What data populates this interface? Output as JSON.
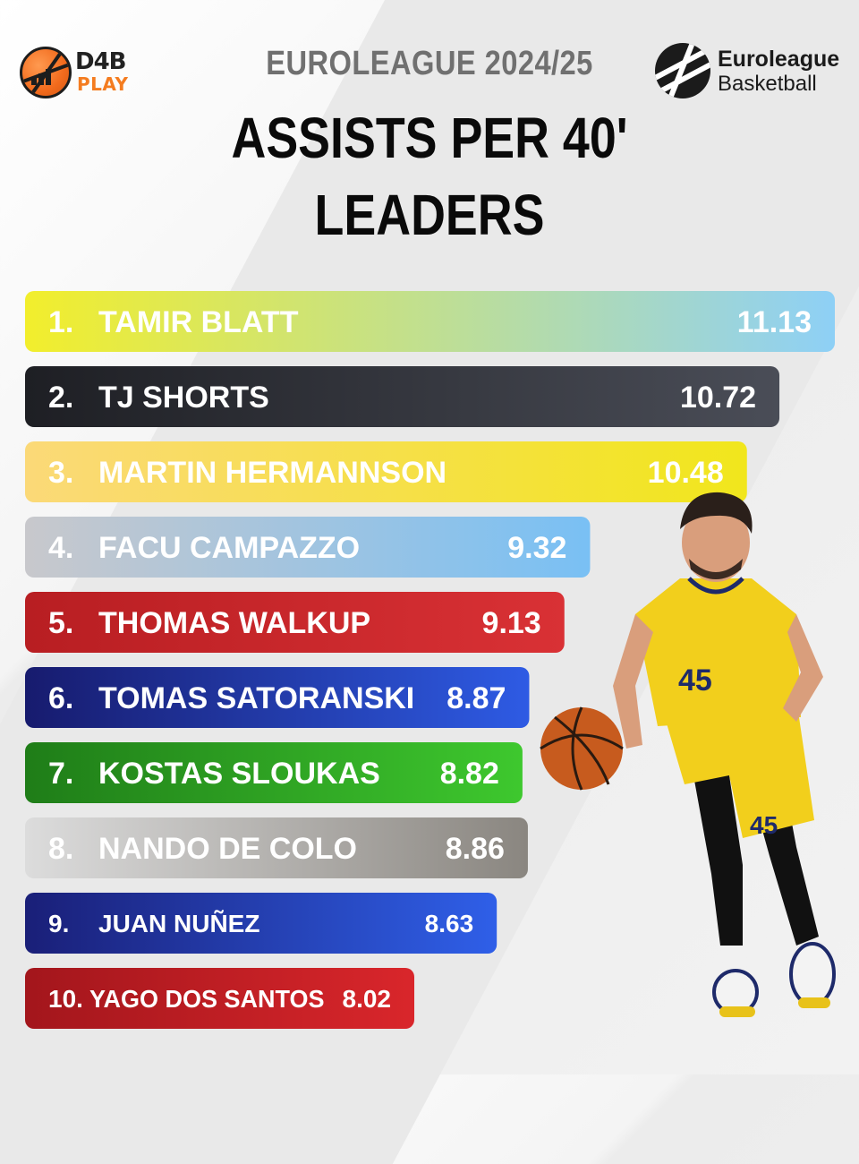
{
  "header": {
    "season": "EUROLEAGUE 2024/25",
    "title_line1": "ASSISTS PER 40'",
    "title_line2": "LEADERS"
  },
  "logos": {
    "left_top": "D4B",
    "left_bottom": "PLAY",
    "right_top": "Euroleague",
    "right_bottom": "Basketball"
  },
  "chart_data": {
    "type": "bar",
    "orientation": "horizontal",
    "title": "ASSISTS PER 40' LEADERS",
    "categories": [
      "TAMIR BLATT",
      "TJ SHORTS",
      "MARTIN HERMANNSON",
      "FACU CAMPAZZO",
      "THOMAS WALKUP",
      "TOMAS SATORANSKI",
      "KOSTAS SLOUKAS",
      "NANDO DE COLO",
      "JUAN NUÑEZ",
      "YAGO DOS SANTOS"
    ],
    "ranks": [
      "1.",
      "2.",
      "3.",
      "4.",
      "5.",
      "6.",
      "7.",
      "8.",
      "9.",
      "10."
    ],
    "values": [
      11.13,
      10.72,
      10.48,
      9.32,
      9.13,
      8.87,
      8.82,
      8.86,
      8.63,
      8.02
    ],
    "labels": [
      "11.13",
      "10.72",
      "10.48",
      "9.32",
      "9.13",
      "8.87",
      "8.82",
      "8.86",
      "8.63",
      "8.02"
    ],
    "bar_colors": [
      [
        "#f2ee2c",
        "#8ed0f6"
      ],
      [
        "#1e1f24",
        "#4a4d57"
      ],
      [
        "#fbd978",
        "#f1e61c"
      ],
      [
        "#c8c8cc",
        "#79c0f4"
      ],
      [
        "#b81e22",
        "#d93135"
      ],
      [
        "#171b6e",
        "#2e5be4"
      ],
      [
        "#1f7d18",
        "#3ec82e"
      ],
      [
        "#dcdcdc",
        "#8a8680"
      ],
      [
        "#1a1f78",
        "#2f5fe8"
      ],
      [
        "#a3161c",
        "#d9262b"
      ]
    ],
    "text_colors": [
      "#ffffff",
      "#ffffff",
      "#ffffff",
      "#ffffff",
      "#ffffff",
      "#ffffff",
      "#ffffff",
      "#ffffff",
      "#ffffff",
      "#ffffff"
    ],
    "grid": false,
    "legend": "none"
  }
}
